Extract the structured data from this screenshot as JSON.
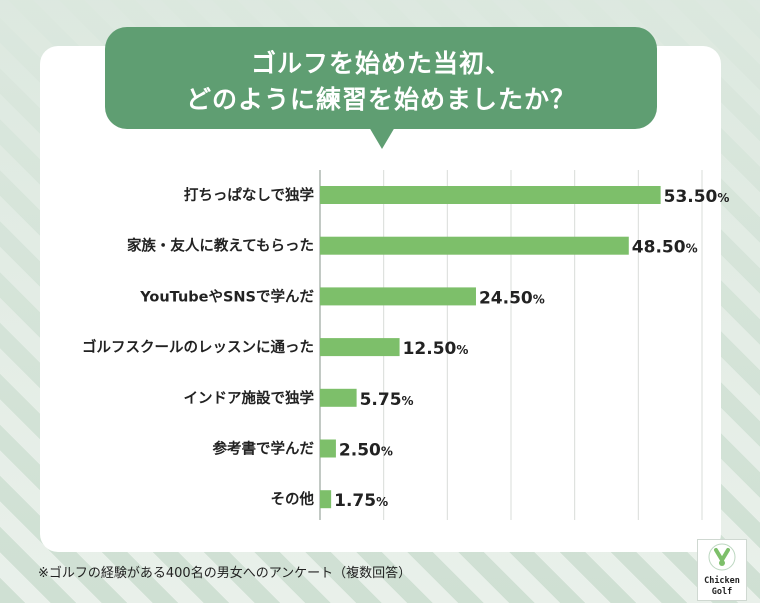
{
  "title": {
    "line1": "ゴルフを始めた当初、",
    "line2": "どのように練習を始めましたか？"
  },
  "chart_data": {
    "type": "bar",
    "orientation": "horizontal",
    "categories": [
      "打ちっぱなしで独学",
      "家族・友人に教えてもらった",
      "YouTubeやSNSで学んだ",
      "ゴルフスクールのレッスンに通った",
      "インドア施設で独学",
      "参考書で学んだ",
      "その他"
    ],
    "values": [
      53.5,
      48.5,
      24.5,
      12.5,
      5.75,
      2.5,
      1.75
    ],
    "value_labels": [
      "53.50",
      "48.50",
      "24.50",
      "12.50",
      "5.75",
      "2.50",
      "1.75"
    ],
    "unit": "%",
    "xlim": [
      0,
      60
    ],
    "grid": true,
    "bar_color": "#7dbf6a"
  },
  "footnote": "※ゴルフの経験がある400名の男女へのアンケート（複数回答）",
  "logo": {
    "line1": "Chicken",
    "line2": "Golf"
  }
}
